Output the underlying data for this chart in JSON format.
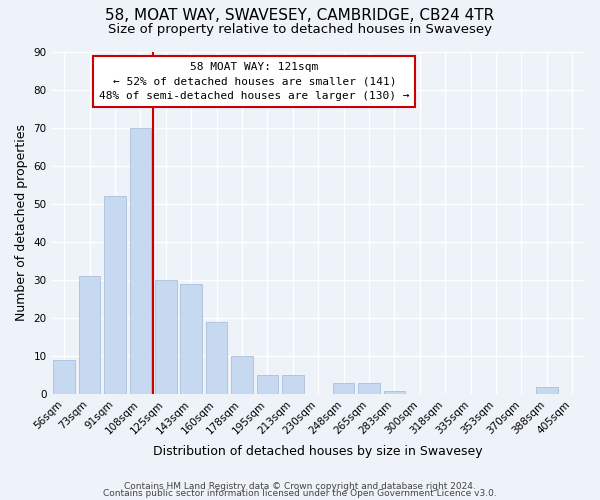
{
  "title": "58, MOAT WAY, SWAVESEY, CAMBRIDGE, CB24 4TR",
  "subtitle": "Size of property relative to detached houses in Swavesey",
  "xlabel": "Distribution of detached houses by size in Swavesey",
  "ylabel": "Number of detached properties",
  "bar_labels": [
    "56sqm",
    "73sqm",
    "91sqm",
    "108sqm",
    "125sqm",
    "143sqm",
    "160sqm",
    "178sqm",
    "195sqm",
    "213sqm",
    "230sqm",
    "248sqm",
    "265sqm",
    "283sqm",
    "300sqm",
    "318sqm",
    "335sqm",
    "353sqm",
    "370sqm",
    "388sqm",
    "405sqm"
  ],
  "bar_values": [
    9,
    31,
    52,
    70,
    30,
    29,
    19,
    10,
    5,
    5,
    0,
    3,
    3,
    1,
    0,
    0,
    0,
    0,
    0,
    2,
    0
  ],
  "bar_color": "#c6d9f0",
  "bar_edge_color": "#a0b8d8",
  "vline_x": 3.5,
  "vline_color": "#cc0000",
  "annotation_line1": "58 MOAT WAY: 121sqm",
  "annotation_line2": "← 52% of detached houses are smaller (141)",
  "annotation_line3": "48% of semi-detached houses are larger (130) →",
  "annotation_box_color": "#ffffff",
  "annotation_box_edge": "#cc0000",
  "ylim": [
    0,
    90
  ],
  "yticks": [
    0,
    10,
    20,
    30,
    40,
    50,
    60,
    70,
    80,
    90
  ],
  "footer_line1": "Contains HM Land Registry data © Crown copyright and database right 2024.",
  "footer_line2": "Contains public sector information licensed under the Open Government Licence v3.0.",
  "background_color": "#eef2f9",
  "grid_color": "#ffffff",
  "title_fontsize": 11,
  "subtitle_fontsize": 9.5,
  "axis_label_fontsize": 9,
  "tick_fontsize": 7.5,
  "footer_fontsize": 6.5
}
